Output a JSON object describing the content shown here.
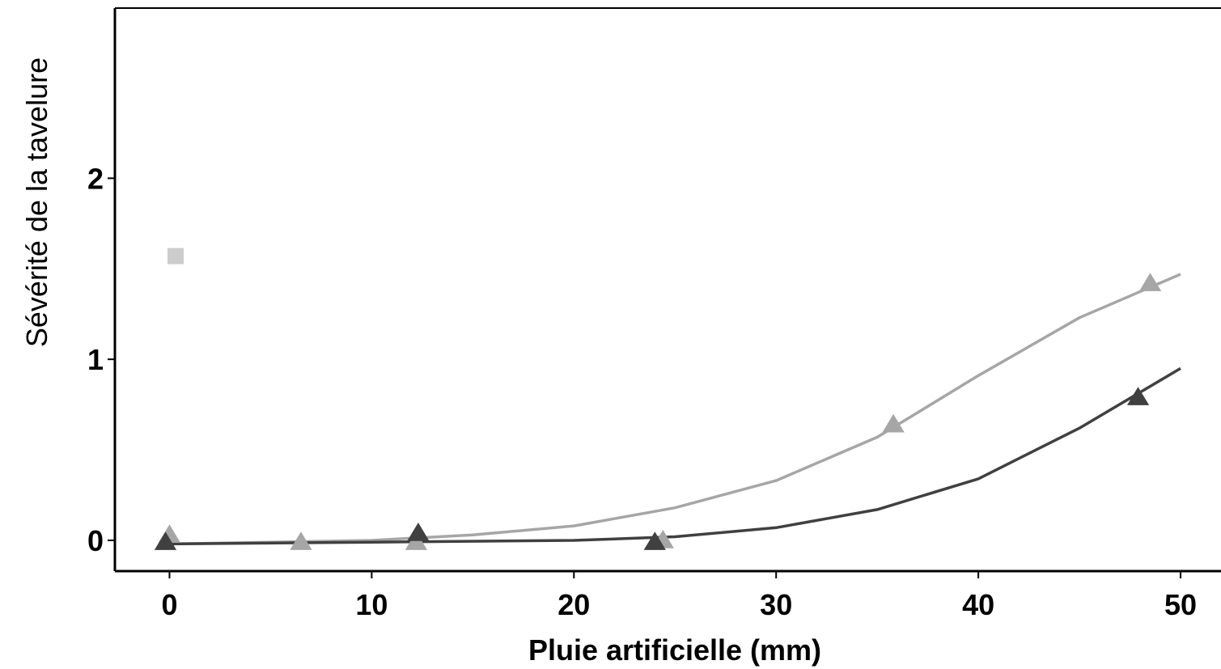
{
  "chart_data": {
    "type": "scatter",
    "title": "",
    "xlabel": "Pluie artificielle (mm)",
    "ylabel": "Sévérité de la tavelure",
    "xlim": [
      -2.7,
      52
    ],
    "ylim": [
      -0.17,
      2.94
    ],
    "x_ticks": [
      0,
      10,
      20,
      30,
      40,
      50
    ],
    "y_ticks": [
      0,
      1,
      2
    ],
    "grid": false,
    "legend": "none",
    "series": [
      {
        "color": "#a6a6a6",
        "marker": "triangle",
        "points": [
          [
            0,
            0.03
          ],
          [
            6.5,
            -0.01
          ],
          [
            12.2,
            -0.01
          ],
          [
            24.4,
            0.0
          ],
          [
            35.8,
            0.64
          ],
          [
            48.5,
            1.42
          ]
        ],
        "fit": [
          [
            0,
            -0.02
          ],
          [
            5,
            -0.01
          ],
          [
            10,
            0.0
          ],
          [
            15,
            0.03
          ],
          [
            20,
            0.08
          ],
          [
            25,
            0.18
          ],
          [
            30,
            0.33
          ],
          [
            35,
            0.57
          ],
          [
            40,
            0.91
          ],
          [
            45,
            1.23
          ],
          [
            50,
            1.47
          ]
        ]
      },
      {
        "color": "#404040",
        "marker": "triangle",
        "points": [
          [
            -0.2,
            -0.01
          ],
          [
            12.3,
            0.04
          ],
          [
            24.0,
            -0.01
          ],
          [
            47.9,
            0.79
          ]
        ],
        "fit": [
          [
            0,
            -0.02
          ],
          [
            10,
            -0.01
          ],
          [
            20,
            0.0
          ],
          [
            25,
            0.02
          ],
          [
            30,
            0.07
          ],
          [
            35,
            0.17
          ],
          [
            40,
            0.34
          ],
          [
            45,
            0.62
          ],
          [
            50,
            0.95
          ]
        ]
      },
      {
        "color": "#cccccc",
        "marker": "square",
        "points": [
          [
            0.3,
            1.57
          ]
        ],
        "fit": []
      }
    ]
  }
}
